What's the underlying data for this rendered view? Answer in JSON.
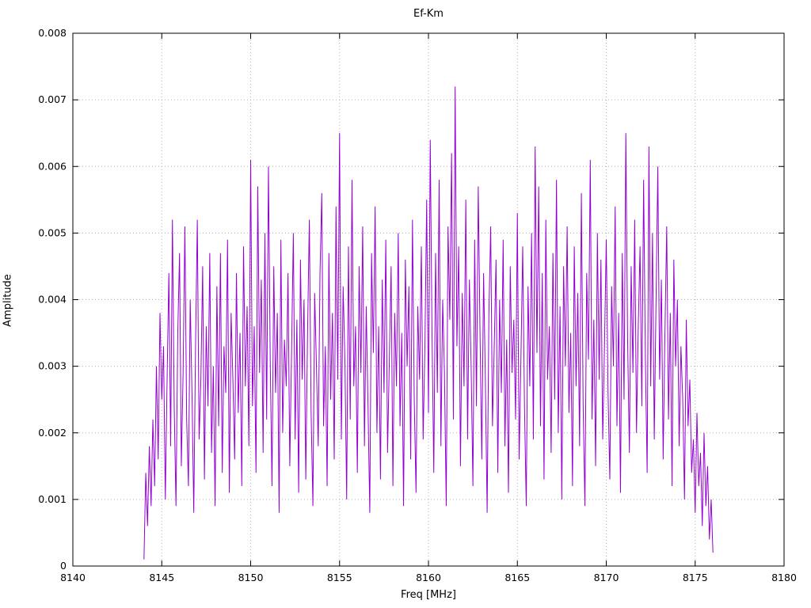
{
  "chart_data": {
    "type": "line",
    "title": "Ef-Km",
    "xlabel": "Freq [MHz]",
    "ylabel": "Amplitude",
    "xlim": [
      8140,
      8180
    ],
    "ylim": [
      0,
      0.008
    ],
    "xticks": [
      8140,
      8145,
      8150,
      8155,
      8160,
      8165,
      8170,
      8175,
      8180
    ],
    "xtick_labels": [
      "8140",
      "8145",
      "8150",
      "8155",
      "8160",
      "8165",
      "8170",
      "8175",
      "8180"
    ],
    "yticks": [
      0,
      0.001,
      0.002,
      0.003,
      0.004,
      0.005,
      0.006,
      0.007,
      0.008
    ],
    "ytick_labels": [
      "0",
      "0.001",
      "0.002",
      "0.003",
      "0.004",
      "0.005",
      "0.006",
      "0.007",
      "0.008"
    ],
    "grid": true,
    "legend_position": "none",
    "line_color": "#9400D3",
    "grid_color": "#b0b0b0",
    "border_color": "#000000",
    "series": [
      {
        "name": "Ef-Km",
        "x_start": 8144.0,
        "x_step": 0.1,
        "y_scale": 0.0001,
        "values": [
          1,
          14,
          6,
          18,
          9,
          22,
          12,
          30,
          16,
          38,
          25,
          33,
          10,
          28,
          44,
          18,
          52,
          24,
          9,
          35,
          47,
          15,
          29,
          51,
          22,
          12,
          40,
          26,
          8,
          33,
          52,
          19,
          28,
          45,
          13,
          36,
          24,
          47,
          17,
          30,
          9,
          42,
          21,
          47,
          14,
          33,
          26,
          49,
          11,
          38,
          28,
          16,
          44,
          23,
          35,
          12,
          48,
          27,
          39,
          18,
          61,
          24,
          36,
          14,
          57,
          29,
          43,
          17,
          50,
          22,
          60,
          31,
          12,
          45,
          26,
          38,
          8,
          49,
          20,
          34,
          27,
          44,
          15,
          32,
          50,
          19,
          37,
          11,
          46,
          28,
          40,
          13,
          35,
          52,
          23,
          9,
          41,
          30,
          18,
          44,
          56,
          21,
          33,
          12,
          47,
          25,
          38,
          16,
          54,
          28,
          65,
          19,
          42,
          31,
          10,
          48,
          22,
          58,
          27,
          36,
          14,
          45,
          29,
          51,
          18,
          39,
          24,
          8,
          47,
          32,
          54,
          20,
          36,
          13,
          43,
          26,
          49,
          17,
          31,
          45,
          12,
          38,
          27,
          50,
          21,
          35,
          9,
          46,
          30,
          42,
          16,
          52,
          25,
          11,
          39,
          28,
          48,
          19,
          33,
          55,
          23,
          64,
          35,
          14,
          47,
          26,
          58,
          18,
          40,
          29,
          9,
          51,
          37,
          62,
          22,
          72,
          33,
          48,
          15,
          41,
          27,
          55,
          19,
          43,
          30,
          12,
          49,
          24,
          57,
          35,
          16,
          44,
          28,
          8,
          38,
          51,
          21,
          33,
          46,
          14,
          40,
          26,
          49,
          18,
          34,
          11,
          45,
          29,
          37,
          22,
          53,
          16,
          31,
          48,
          24,
          9,
          42,
          27,
          50,
          19,
          63,
          32,
          57,
          21,
          44,
          13,
          52,
          28,
          36,
          17,
          47,
          25,
          58,
          20,
          39,
          10,
          45,
          30,
          51,
          23,
          35,
          12,
          48,
          27,
          41,
          18,
          56,
          24,
          9,
          44,
          31,
          61,
          22,
          37,
          15,
          50,
          28,
          46,
          19,
          33,
          49,
          26,
          13,
          42,
          30,
          54,
          21,
          38,
          11,
          47,
          25,
          65,
          34,
          17,
          45,
          29,
          52,
          20,
          36,
          48,
          24,
          58,
          31,
          14,
          63,
          27,
          50,
          19,
          40,
          60,
          28,
          43,
          16,
          35,
          51,
          22,
          38,
          12,
          46,
          30,
          40,
          18,
          33,
          25,
          10,
          37,
          21,
          28,
          14,
          19,
          8,
          23,
          12,
          17,
          6,
          20,
          9,
          15,
          4,
          10,
          2
        ]
      }
    ]
  }
}
